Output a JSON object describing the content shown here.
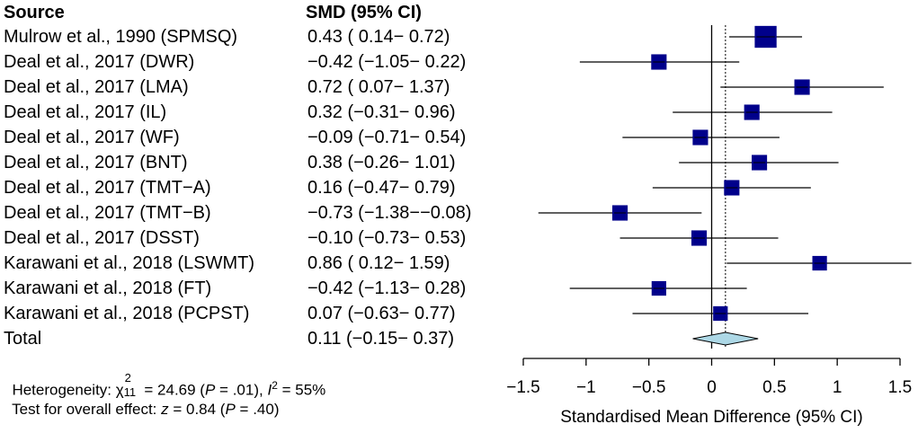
{
  "header": {
    "source": "Source",
    "smd": "SMD (95% CI)"
  },
  "chart_data": {
    "type": "forest",
    "xlabel": "Standardised Mean Difference (95% CI)",
    "xlim": [
      -1.5,
      1.5
    ],
    "xticks": [
      -1.5,
      -1,
      -0.5,
      0,
      0.5,
      1,
      1.5
    ],
    "xtick_labels": [
      "−1.5",
      "−1",
      "−0.5",
      "0",
      "0.5",
      "1",
      "1.5"
    ],
    "null_line": 0,
    "pooled_line": 0.11,
    "studies": [
      {
        "source": "Mulrow et al., 1990 (SPMSQ)",
        "ci_text": "0.43 ( 0.14− 0.72)",
        "smd": 0.43,
        "lo": 0.14,
        "hi": 0.72,
        "weight": 1.35
      },
      {
        "source": "Deal et al., 2017 (DWR)",
        "ci_text": "−0.42 (−1.05− 0.22)",
        "smd": -0.42,
        "lo": -1.05,
        "hi": 0.22,
        "weight": 0.95
      },
      {
        "source": "Deal et al., 2017 (LMA)",
        "ci_text": "0.72 ( 0.07− 1.37)",
        "smd": 0.72,
        "lo": 0.07,
        "hi": 1.37,
        "weight": 0.95
      },
      {
        "source": "Deal et al., 2017 (IL)",
        "ci_text": "0.32 (−0.31− 0.96)",
        "smd": 0.32,
        "lo": -0.31,
        "hi": 0.96,
        "weight": 0.95
      },
      {
        "source": "Deal et al., 2017 (WF)",
        "ci_text": "−0.09 (−0.71− 0.54)",
        "smd": -0.09,
        "lo": -0.71,
        "hi": 0.54,
        "weight": 0.95
      },
      {
        "source": "Deal et al., 2017 (BNT)",
        "ci_text": "0.38 (−0.26− 1.01)",
        "smd": 0.38,
        "lo": -0.26,
        "hi": 1.01,
        "weight": 0.95
      },
      {
        "source": "Deal et al., 2017 (TMT−A)",
        "ci_text": "0.16 (−0.47− 0.79)",
        "smd": 0.16,
        "lo": -0.47,
        "hi": 0.79,
        "weight": 0.95
      },
      {
        "source": "Deal et al., 2017 (TMT−B)",
        "ci_text": "−0.73 (−1.38−−0.08)",
        "smd": -0.73,
        "lo": -1.38,
        "hi": -0.08,
        "weight": 0.95
      },
      {
        "source": "Deal et al., 2017 (DSST)",
        "ci_text": "−0.10 (−0.73− 0.53)",
        "smd": -0.1,
        "lo": -0.73,
        "hi": 0.53,
        "weight": 0.95
      },
      {
        "source": "Karawani et al., 2018 (LSWMT)",
        "ci_text": "0.86 ( 0.12− 1.59)",
        "smd": 0.86,
        "lo": 0.12,
        "hi": 1.59,
        "weight": 0.9
      },
      {
        "source": "Karawani et al., 2018 (FT)",
        "ci_text": "−0.42 (−1.13− 0.28)",
        "smd": -0.42,
        "lo": -1.13,
        "hi": 0.28,
        "weight": 0.9
      },
      {
        "source": "Karawani et al., 2018 (PCPST)",
        "ci_text": "0.07 (−0.63− 0.77)",
        "smd": 0.07,
        "lo": -0.63,
        "hi": 0.77,
        "weight": 0.9
      }
    ],
    "total": {
      "source": "Total",
      "ci_text": "0.11 (−0.15− 0.37)",
      "smd": 0.11,
      "lo": -0.15,
      "hi": 0.37
    },
    "colors": {
      "box": "#00008B",
      "diamond": "#ADD8E6",
      "line": "#000000"
    }
  },
  "footer": {
    "heterogeneity_prefix": "Heterogeneity: χ",
    "het_chi_sup": "2",
    "het_chi_sub": "11",
    "het_value": " = 24.69 (",
    "het_p_label": "P",
    "het_p_value": " = .01), ",
    "het_i_label": "I",
    "het_i_sup": "2",
    "het_i_value": " = 55%",
    "overall_prefix": "Test for overall effect: ",
    "overall_z_label": "z",
    "overall_z_value": " = 0.84 (",
    "overall_p_label": "P",
    "overall_p_value": " = .40)"
  }
}
